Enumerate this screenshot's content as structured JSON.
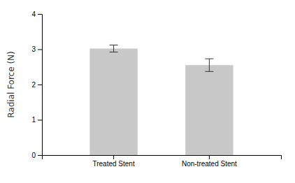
{
  "chart_data": {
    "type": "bar",
    "categories": [
      "Treated Stent",
      "Non-treated Stent"
    ],
    "values": [
      3.02,
      2.55
    ],
    "errors": [
      0.1,
      0.18
    ],
    "color": "#c8c8c8",
    "ylabel": "Radial Force (N)",
    "ylim": [
      0,
      4
    ],
    "yticks": [
      0,
      1,
      2,
      3,
      4
    ]
  }
}
